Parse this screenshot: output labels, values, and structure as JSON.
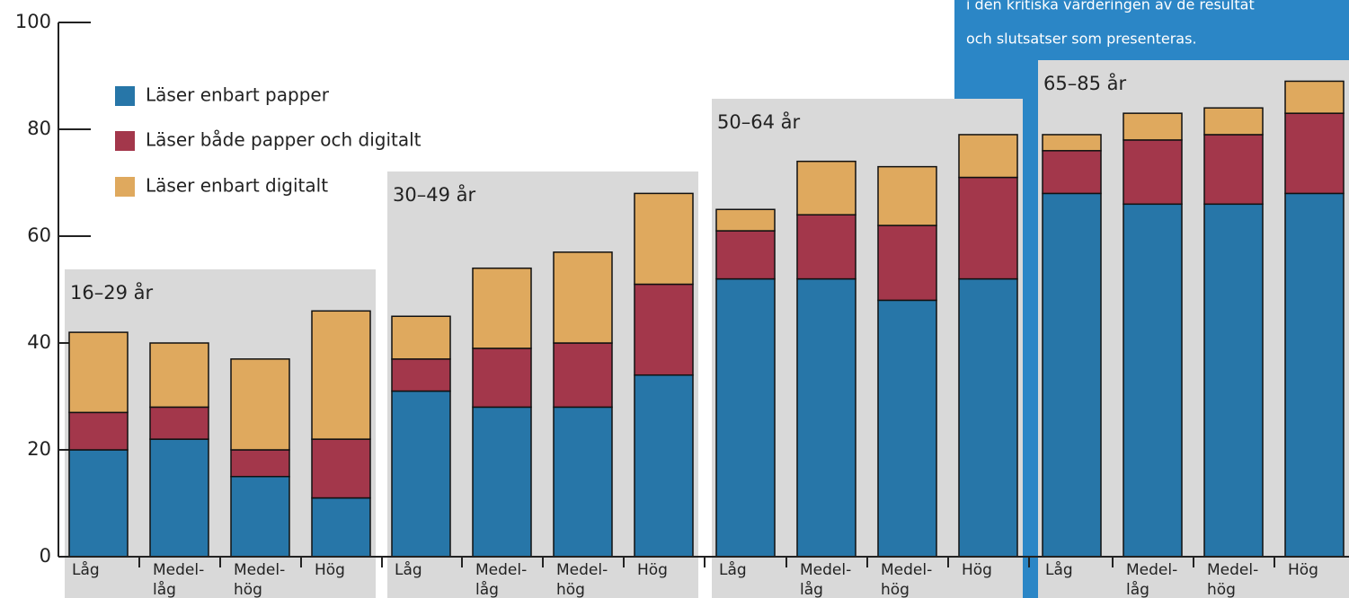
{
  "chart_data": {
    "type": "bar",
    "stacked": true,
    "ylim": [
      0,
      100
    ],
    "yticks": [
      0,
      20,
      40,
      60,
      80,
      100
    ],
    "categories": [
      [
        "Låg"
      ],
      [
        "Medel-",
        "låg"
      ],
      [
        "Medel-",
        "hög"
      ],
      [
        "Hög"
      ]
    ],
    "series": [
      {
        "name": "Läser enbart papper",
        "color": "#2776a8"
      },
      {
        "name": "Läser både papper och digitalt",
        "color": "#a3374b"
      },
      {
        "name": "Läser enbart digitalt",
        "color": "#dfa95e"
      }
    ],
    "groups": [
      {
        "name": "16–29 år",
        "values": [
          [
            20,
            22,
            15,
            11
          ],
          [
            7,
            6,
            5,
            11
          ],
          [
            15,
            12,
            17,
            24
          ]
        ]
      },
      {
        "name": "30–49 år",
        "values": [
          [
            31,
            28,
            28,
            34
          ],
          [
            6,
            11,
            12,
            17
          ],
          [
            8,
            15,
            17,
            17
          ]
        ]
      },
      {
        "name": "50–64 år",
        "values": [
          [
            52,
            52,
            48,
            52
          ],
          [
            9,
            12,
            14,
            19
          ],
          [
            4,
            10,
            11,
            8
          ]
        ]
      },
      {
        "name": "65–85 år",
        "values": [
          [
            68,
            66,
            66,
            68
          ],
          [
            8,
            12,
            13,
            15
          ],
          [
            3,
            5,
            5,
            6
          ]
        ]
      }
    ]
  },
  "sidebar": {
    "lines": [
      "i den kritiska värderingen av de resultat",
      "och slutsatser som presenteras."
    ]
  }
}
